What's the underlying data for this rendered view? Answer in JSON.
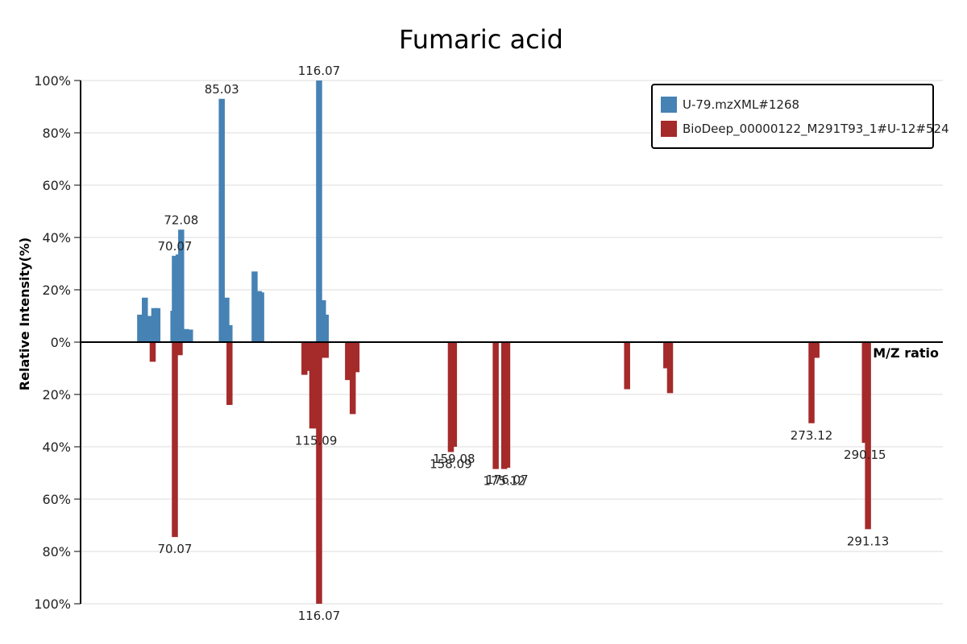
{
  "chart_data": {
    "type": "bar",
    "title": "Fumaric acid",
    "xlabel": "M/Z ratio",
    "ylabel": "Relative Intensity(%)",
    "xlim": [
      40,
      315
    ],
    "ylim": [
      -100,
      100
    ],
    "yticks": [
      {
        "value": 100,
        "label": "100%"
      },
      {
        "value": 80,
        "label": "80%"
      },
      {
        "value": 60,
        "label": "60%"
      },
      {
        "value": 40,
        "label": "40%"
      },
      {
        "value": 20,
        "label": "20%"
      },
      {
        "value": 0,
        "label": "0%"
      },
      {
        "value": -20,
        "label": "20%"
      },
      {
        "value": -40,
        "label": "40%"
      },
      {
        "value": -60,
        "label": "60%"
      },
      {
        "value": -80,
        "label": "80%"
      },
      {
        "value": -100,
        "label": "100%"
      }
    ],
    "grid": true,
    "legend_position": "top-right",
    "series": [
      {
        "name": "U-79.mzXML#1268",
        "color": "#4682b4",
        "direction": "up",
        "peaks": [
          {
            "mz": 59.0,
            "intensity": 10.5
          },
          {
            "mz": 60.5,
            "intensity": 17.0
          },
          {
            "mz": 61.8,
            "intensity": 10.0
          },
          {
            "mz": 63.5,
            "intensity": 13.0
          },
          {
            "mz": 64.5,
            "intensity": 13.0
          },
          {
            "mz": 69.6,
            "intensity": 12.0
          },
          {
            "mz": 70.07,
            "intensity": 33.0,
            "label": "70.07"
          },
          {
            "mz": 71.3,
            "intensity": 33.5
          },
          {
            "mz": 72.08,
            "intensity": 43.0,
            "label": "72.08"
          },
          {
            "mz": 73.6,
            "intensity": 5.0
          },
          {
            "mz": 74.9,
            "intensity": 4.8
          },
          {
            "mz": 85.03,
            "intensity": 93.0,
            "label": "85.03"
          },
          {
            "mz": 86.5,
            "intensity": 17.0
          },
          {
            "mz": 87.5,
            "intensity": 6.5
          },
          {
            "mz": 95.5,
            "intensity": 27.0
          },
          {
            "mz": 96.9,
            "intensity": 19.5
          },
          {
            "mz": 97.6,
            "intensity": 19.0
          },
          {
            "mz": 116.07,
            "intensity": 100.0,
            "label": "116.07"
          },
          {
            "mz": 117.3,
            "intensity": 16.0
          },
          {
            "mz": 118.2,
            "intensity": 10.5
          }
        ]
      },
      {
        "name": "BioDeep_00000122_M291T93_1#U-12#524",
        "color": "#a52a2a",
        "direction": "down",
        "peaks": [
          {
            "mz": 63.0,
            "intensity": 7.5
          },
          {
            "mz": 70.07,
            "intensity": 74.5,
            "label": "70.07"
          },
          {
            "mz": 71.6,
            "intensity": 5.0
          },
          {
            "mz": 87.5,
            "intensity": 24.0
          },
          {
            "mz": 111.4,
            "intensity": 12.5
          },
          {
            "mz": 112.6,
            "intensity": 11.0
          },
          {
            "mz": 113.9,
            "intensity": 33.0
          },
          {
            "mz": 115.09,
            "intensity": 33.0,
            "label": "115.09"
          },
          {
            "mz": 116.07,
            "intensity": 100.0,
            "label": "116.07"
          },
          {
            "mz": 117.0,
            "intensity": 6.0
          },
          {
            "mz": 118.2,
            "intensity": 6.0
          },
          {
            "mz": 125.3,
            "intensity": 14.5
          },
          {
            "mz": 126.8,
            "intensity": 27.5
          },
          {
            "mz": 128.0,
            "intensity": 11.5
          },
          {
            "mz": 158.09,
            "intensity": 42.0,
            "label": "158.09"
          },
          {
            "mz": 159.08,
            "intensity": 40.0,
            "label": "159.08"
          },
          {
            "mz": 172.4,
            "intensity": 48.5
          },
          {
            "mz": 175.12,
            "intensity": 48.5,
            "label": "175.12"
          },
          {
            "mz": 176.07,
            "intensity": 48.0,
            "label": "176.07"
          },
          {
            "mz": 214.3,
            "intensity": 18.0
          },
          {
            "mz": 226.8,
            "intensity": 10.0
          },
          {
            "mz": 228.0,
            "intensity": 19.5
          },
          {
            "mz": 273.12,
            "intensity": 31.0,
            "label": "273.12"
          },
          {
            "mz": 274.7,
            "intensity": 6.0
          },
          {
            "mz": 290.15,
            "intensity": 38.5,
            "label": "290.15"
          },
          {
            "mz": 291.13,
            "intensity": 71.5,
            "label": "291.13"
          }
        ]
      }
    ]
  }
}
